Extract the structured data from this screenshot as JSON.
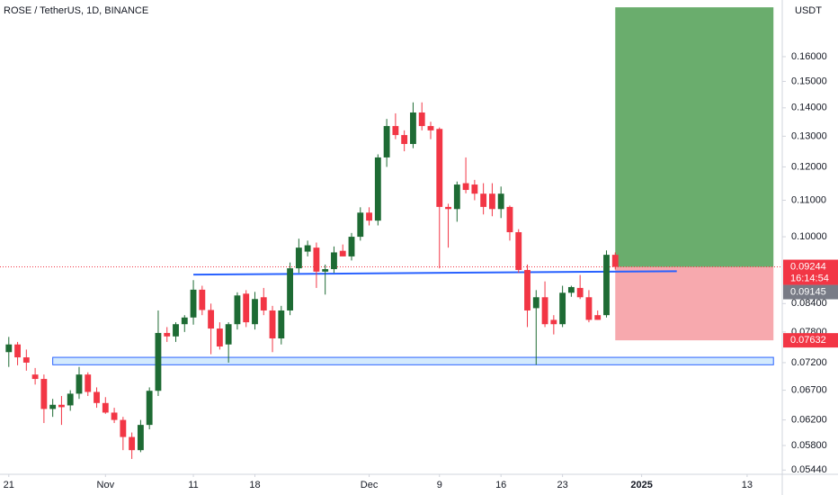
{
  "chart_data": {
    "type": "candlestick",
    "title": "ROSE / TetherUS, 1D, BINANCE",
    "currency": "USDT",
    "log_scale": true,
    "up_color": "#1e6b34",
    "down_color": "#f23645",
    "dates": [
      "2024-10-21",
      "2024-10-22",
      "2024-10-23",
      "2024-10-24",
      "2024-10-25",
      "2024-10-26",
      "2024-10-27",
      "2024-10-28",
      "2024-10-29",
      "2024-10-30",
      "2024-10-31",
      "2024-11-01",
      "2024-11-02",
      "2024-11-03",
      "2024-11-04",
      "2024-11-05",
      "2024-11-06",
      "2024-11-07",
      "2024-11-08",
      "2024-11-09",
      "2024-11-10",
      "2024-11-11",
      "2024-11-12",
      "2024-11-13",
      "2024-11-14",
      "2024-11-15",
      "2024-11-16",
      "2024-11-17",
      "2024-11-18",
      "2024-11-19",
      "2024-11-20",
      "2024-11-21",
      "2024-11-22",
      "2024-11-23",
      "2024-11-24",
      "2024-11-25",
      "2024-11-26",
      "2024-11-27",
      "2024-11-28",
      "2024-11-29",
      "2024-11-30",
      "2024-12-01",
      "2024-12-02",
      "2024-12-03",
      "2024-12-04",
      "2024-12-05",
      "2024-12-06",
      "2024-12-07",
      "2024-12-08",
      "2024-12-09",
      "2024-12-10",
      "2024-12-11",
      "2024-12-12",
      "2024-12-13",
      "2024-12-14",
      "2024-12-15",
      "2024-12-16",
      "2024-12-17",
      "2024-12-18",
      "2024-12-19",
      "2024-12-20",
      "2024-12-21",
      "2024-12-22",
      "2024-12-23",
      "2024-12-24",
      "2024-12-25",
      "2024-12-26",
      "2024-12-27",
      "2024-12-28",
      "2024-12-29"
    ],
    "open": [
      0.074,
      0.0755,
      0.073,
      0.0698,
      0.069,
      0.0638,
      0.0645,
      0.0644,
      0.0664,
      0.0698,
      0.0667,
      0.0648,
      0.0632,
      0.062,
      0.0593,
      0.0573,
      0.0612,
      0.0669,
      0.0778,
      0.0771,
      0.0796,
      0.081,
      0.0871,
      0.0826,
      0.0787,
      0.0755,
      0.0796,
      0.0862,
      0.0796,
      0.0854,
      0.0825,
      0.0767,
      0.0825,
      0.0921,
      0.0962,
      0.0972,
      0.0913,
      0.0919,
      0.0964,
      0.095,
      0.1,
      0.1065,
      0.1043,
      0.123,
      0.1335,
      0.1304,
      0.1274,
      0.1383,
      0.1335,
      0.1325,
      0.1081,
      0.1075,
      0.115,
      0.1146,
      0.1119,
      0.1119,
      0.1075,
      0.1081,
      0.1012,
      0.0917,
      0.083,
      0.0854,
      0.0805,
      0.0796,
      0.0864,
      0.0875,
      0.0854,
      0.0815,
      0.0815,
      0.0954
    ],
    "high": [
      0.077,
      0.076,
      0.0745,
      0.071,
      0.0698,
      0.0655,
      0.066,
      0.067,
      0.0712,
      0.0702,
      0.0675,
      0.0658,
      0.064,
      0.0625,
      0.06,
      0.062,
      0.0675,
      0.0825,
      0.079,
      0.08,
      0.0815,
      0.0893,
      0.088,
      0.084,
      0.08,
      0.08,
      0.0865,
      0.087,
      0.0866,
      0.0875,
      0.0835,
      0.0835,
      0.0935,
      0.0995,
      0.099,
      0.0985,
      0.093,
      0.0975,
      0.098,
      0.101,
      0.108,
      0.108,
      0.124,
      0.136,
      0.138,
      0.132,
      0.142,
      0.142,
      0.135,
      0.133,
      0.109,
      0.1155,
      0.123,
      0.116,
      0.115,
      0.115,
      0.114,
      0.1085,
      0.102,
      0.093,
      0.087,
      0.089,
      0.0815,
      0.088,
      0.088,
      0.0905,
      0.087,
      0.0825,
      0.0965,
      0.096
    ],
    "low": [
      0.0712,
      0.0715,
      0.0705,
      0.068,
      0.0615,
      0.0625,
      0.0612,
      0.0635,
      0.0655,
      0.066,
      0.064,
      0.063,
      0.0615,
      0.0573,
      0.056,
      0.057,
      0.0605,
      0.066,
      0.076,
      0.076,
      0.078,
      0.0795,
      0.0815,
      0.0736,
      0.0745,
      0.072,
      0.0785,
      0.079,
      0.0785,
      0.0815,
      0.074,
      0.0755,
      0.0815,
      0.091,
      0.095,
      0.0875,
      0.086,
      0.091,
      0.095,
      0.094,
      0.099,
      0.103,
      0.103,
      0.12,
      0.129,
      0.125,
      0.126,
      0.132,
      0.129,
      0.0921,
      0.0972,
      0.104,
      0.112,
      0.11,
      0.106,
      0.1055,
      0.105,
      0.099,
      0.091,
      0.079,
      0.0716,
      0.079,
      0.0775,
      0.079,
      0.0855,
      0.085,
      0.08,
      0.0805,
      0.081,
      0.0918
    ],
    "close": [
      0.0755,
      0.073,
      0.072,
      0.069,
      0.0638,
      0.0645,
      0.0641,
      0.0664,
      0.0698,
      0.0667,
      0.0648,
      0.0632,
      0.062,
      0.0593,
      0.0573,
      0.0612,
      0.0669,
      0.0778,
      0.0771,
      0.0796,
      0.081,
      0.0871,
      0.0826,
      0.0787,
      0.0751,
      0.0796,
      0.0858,
      0.08,
      0.085,
      0.0825,
      0.0767,
      0.0825,
      0.0921,
      0.0972,
      0.0978,
      0.0913,
      0.0919,
      0.096,
      0.095,
      0.1,
      0.1065,
      0.1043,
      0.123,
      0.1335,
      0.1304,
      0.1274,
      0.1383,
      0.1335,
      0.132,
      0.1081,
      0.1075,
      0.1146,
      0.113,
      0.1119,
      0.1081,
      0.1075,
      0.1119,
      0.1012,
      0.0917,
      0.0825,
      0.0854,
      0.0796,
      0.0796,
      0.0864,
      0.0877,
      0.0854,
      0.0805,
      0.0805,
      0.0954,
      0.09244
    ],
    "xlim": [
      "2024-10-20",
      "2025-01-17"
    ],
    "xticks": [
      {
        "value": "2024-10-21",
        "label": "21"
      },
      {
        "value": "2024-11-01",
        "label": "Nov"
      },
      {
        "value": "2024-11-11",
        "label": "11"
      },
      {
        "value": "2024-11-18",
        "label": "18"
      },
      {
        "value": "2024-12-01",
        "label": "Dec"
      },
      {
        "value": "2024-12-09",
        "label": "9"
      },
      {
        "value": "2024-12-16",
        "label": "16"
      },
      {
        "value": "2024-12-23",
        "label": "23"
      },
      {
        "value": "2025-01-01",
        "label": "2025"
      },
      {
        "value": "2025-01-13",
        "label": "13"
      }
    ],
    "ylim": [
      0.0538,
      0.1855
    ],
    "yticks": [
      {
        "value": 0.16,
        "label": "0.16000"
      },
      {
        "value": 0.15,
        "label": "0.15000"
      },
      {
        "value": 0.14,
        "label": "0.14000"
      },
      {
        "value": 0.13,
        "label": "0.13000"
      },
      {
        "value": 0.12,
        "label": "0.12000"
      },
      {
        "value": 0.11,
        "label": "0.11000"
      },
      {
        "value": 0.1,
        "label": "0.10000"
      },
      {
        "value": 0.084,
        "label": "0.08400"
      },
      {
        "value": 0.078,
        "label": "0.07800"
      },
      {
        "value": 0.072,
        "label": "0.07200"
      },
      {
        "value": 0.067,
        "label": "0.06700"
      },
      {
        "value": 0.062,
        "label": "0.06200"
      },
      {
        "value": 0.058,
        "label": "0.05800"
      },
      {
        "value": 0.0544,
        "label": "0.05440"
      }
    ],
    "last_price": {
      "value": 0.09244,
      "countdown": "16:14:54"
    },
    "trend_line": {
      "start": "2024-11-11",
      "end": "2025-01-05",
      "from": 0.0906,
      "to": 0.0914,
      "price_label": 0.09145,
      "color": "#2962ff"
    },
    "zone": {
      "start": "2024-10-26",
      "end": "2025-01-16",
      "top": 0.073,
      "bottom": 0.0716
    },
    "position": {
      "start": "2024-12-29",
      "end": "2025-01-16",
      "target": 0.182,
      "entry": 0.09244,
      "stop": 0.07632
    }
  }
}
